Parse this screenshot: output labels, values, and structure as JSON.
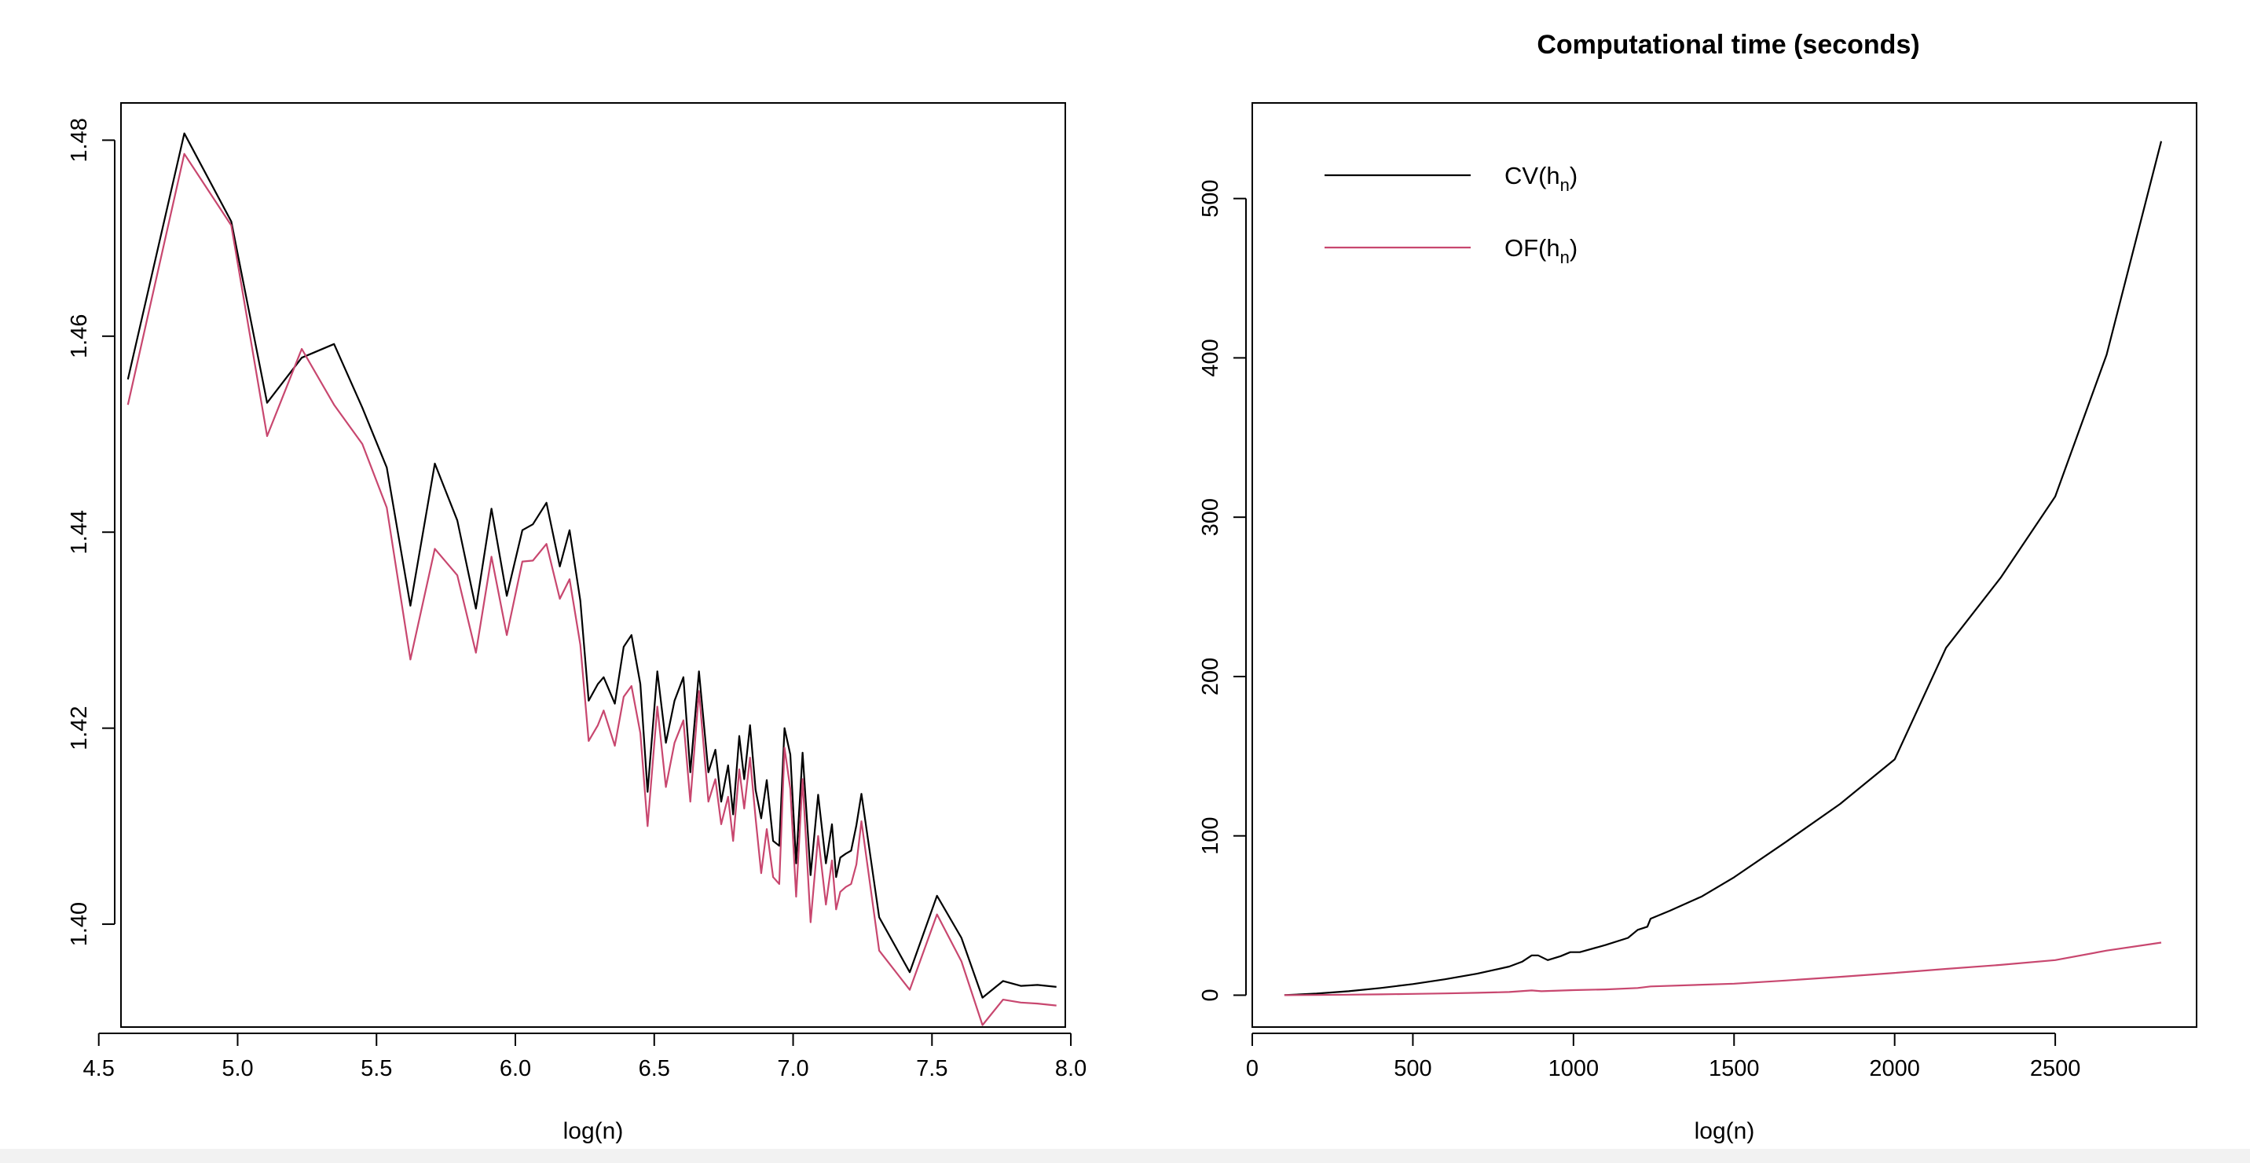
{
  "chart_data": [
    {
      "type": "line",
      "title": "",
      "xlabel": "log(n)",
      "ylabel": "",
      "xlim": [
        4.58,
        7.98
      ],
      "ylim": [
        1.3895,
        1.4838
      ],
      "x_ticks": [
        4.5,
        5.0,
        5.5,
        6.0,
        6.5,
        7.0,
        7.5,
        8.0
      ],
      "x_tick_labels": [
        "4.5",
        "5.0",
        "5.5",
        "6.0",
        "6.5",
        "7.0",
        "7.5",
        "8.0"
      ],
      "y_ticks": [
        1.4,
        1.42,
        1.44,
        1.46,
        1.48
      ],
      "y_tick_labels": [
        "1.40",
        "1.42",
        "1.44",
        "1.46",
        "1.48"
      ],
      "series": [
        {
          "color": "#000000",
          "x": [
            4.605,
            4.808,
            4.977,
            5.106,
            5.231,
            5.347,
            5.449,
            5.537,
            5.622,
            5.71,
            5.791,
            5.858,
            5.914,
            5.969,
            6.025,
            6.063,
            6.112,
            6.16,
            6.195,
            6.234,
            6.264,
            6.297,
            6.318,
            6.358,
            6.39,
            6.418,
            6.45,
            6.476,
            6.511,
            6.542,
            6.573,
            6.605,
            6.63,
            6.661,
            6.695,
            6.72,
            6.741,
            6.766,
            6.784,
            6.806,
            6.824,
            6.845,
            6.865,
            6.885,
            6.905,
            6.928,
            6.95,
            6.969,
            6.99,
            7.011,
            7.034,
            7.063,
            7.09,
            7.118,
            7.14,
            7.155,
            7.17,
            7.19,
            7.209,
            7.228,
            7.246,
            7.31,
            7.42,
            7.518,
            7.606,
            7.682,
            7.756,
            7.82,
            7.88,
            7.948
          ],
          "y": [
            1.4556,
            1.4807,
            1.4717,
            1.4532,
            1.4578,
            1.4592,
            1.4527,
            1.4466,
            1.4325,
            1.447,
            1.4412,
            1.4322,
            1.4424,
            1.4335,
            1.4402,
            1.4408,
            1.443,
            1.4365,
            1.4402,
            1.433,
            1.4228,
            1.4245,
            1.4252,
            1.4225,
            1.4283,
            1.4295,
            1.4245,
            1.4135,
            1.4258,
            1.4185,
            1.4228,
            1.4252,
            1.4155,
            1.4258,
            1.4155,
            1.4178,
            1.4125,
            1.4162,
            1.4112,
            1.4192,
            1.4148,
            1.4203,
            1.4137,
            1.4108,
            1.4147,
            1.4085,
            1.408,
            1.42,
            1.4173,
            1.4062,
            1.4175,
            1.405,
            1.4132,
            1.4062,
            1.4102,
            1.4048,
            1.4068,
            1.4072,
            1.4075,
            1.4101,
            1.4133,
            1.4007,
            1.3951,
            1.4029,
            1.3986,
            1.3925,
            1.3942,
            1.3937,
            1.3938,
            1.3936
          ],
          "y_fix_note": ""
        },
        {
          "color": "#c8476f",
          "x": [
            4.605,
            4.808,
            4.977,
            5.106,
            5.231,
            5.347,
            5.449,
            5.537,
            5.622,
            5.71,
            5.791,
            5.858,
            5.914,
            5.969,
            6.025,
            6.063,
            6.112,
            6.16,
            6.195,
            6.234,
            6.264,
            6.297,
            6.318,
            6.358,
            6.39,
            6.418,
            6.45,
            6.476,
            6.511,
            6.542,
            6.573,
            6.605,
            6.63,
            6.661,
            6.695,
            6.72,
            6.741,
            6.766,
            6.784,
            6.806,
            6.824,
            6.845,
            6.865,
            6.885,
            6.905,
            6.928,
            6.95,
            6.969,
            6.99,
            7.011,
            7.034,
            7.063,
            7.09,
            7.118,
            7.14,
            7.155,
            7.17,
            7.19,
            7.209,
            7.228,
            7.246,
            7.31,
            7.42,
            7.518,
            7.606,
            7.682,
            7.756,
            7.82,
            7.88,
            7.948
          ],
          "y": [
            1.453,
            1.4786,
            1.4713,
            1.4498,
            1.4587,
            1.453,
            1.449,
            1.4425,
            1.427,
            1.4383,
            1.4356,
            1.4277,
            1.4375,
            1.4295,
            1.437,
            1.4371,
            1.4388,
            1.4332,
            1.4352,
            1.4285,
            1.4187,
            1.4203,
            1.4218,
            1.4182,
            1.4232,
            1.4243,
            1.4195,
            1.41,
            1.4222,
            1.414,
            1.4185,
            1.4208,
            1.4125,
            1.4238,
            1.4125,
            1.4148,
            1.4102,
            1.413,
            1.4085,
            1.4158,
            1.4118,
            1.417,
            1.4108,
            1.4052,
            1.4097,
            1.4048,
            1.4041,
            1.418,
            1.4138,
            1.4028,
            1.4148,
            1.4002,
            1.409,
            1.402,
            1.4065,
            1.4015,
            1.4033,
            1.4038,
            1.4041,
            1.4061,
            1.4105,
            1.3973,
            1.3933,
            1.401,
            1.3962,
            1.3897,
            1.3923,
            1.392,
            1.3919,
            1.3917
          ]
        }
      ]
    },
    {
      "type": "line",
      "title": "Computational time (seconds)",
      "xlabel": "log(n)",
      "ylabel": "",
      "xlim": [
        0,
        2940
      ],
      "ylim": [
        -20,
        560
      ],
      "x_ticks": [
        0,
        500,
        1000,
        1500,
        2000,
        2500
      ],
      "x_tick_labels": [
        "0",
        "500",
        "1000",
        "1500",
        "2000",
        "2500"
      ],
      "y_ticks": [
        0,
        100,
        200,
        300,
        400,
        500
      ],
      "y_tick_labels": [
        "0",
        "100",
        "200",
        "300",
        "400",
        "500"
      ],
      "legend": {
        "position": "top-left",
        "entries": [
          {
            "label": "CV(h",
            "sub": "n",
            "close": ")",
            "color": "#000000"
          },
          {
            "label": "OF(h",
            "sub": "n",
            "close": ")",
            "color": "#c8476f"
          }
        ]
      },
      "series": [
        {
          "name": "CV(hn)",
          "color": "#000000",
          "x": [
            100,
            200,
            300,
            400,
            500,
            600,
            700,
            800,
            840,
            870,
            890,
            920,
            960,
            990,
            1020,
            1100,
            1170,
            1200,
            1230,
            1240,
            1300,
            1400,
            1500,
            1660,
            1830,
            2000,
            2160,
            2330,
            2500,
            2660,
            2830
          ],
          "y": [
            0,
            1,
            2.5,
            4.5,
            7,
            10,
            13.5,
            18,
            21,
            25,
            25,
            22,
            24.5,
            27,
            27,
            31.5,
            36,
            41,
            43,
            48,
            53,
            62,
            74,
            96,
            120,
            148,
            218,
            262,
            313,
            402,
            536
          ]
        },
        {
          "name": "OF(hn)",
          "color": "#c8476f",
          "x": [
            100,
            200,
            300,
            400,
            500,
            600,
            700,
            800,
            870,
            900,
            1000,
            1100,
            1200,
            1240,
            1500,
            1660,
            1830,
            2000,
            2160,
            2330,
            2500,
            2660,
            2830
          ],
          "y": [
            0,
            0.1,
            0.3,
            0.5,
            0.8,
            1.1,
            1.5,
            2,
            3,
            2.5,
            3.2,
            3.6,
            4.5,
            5.5,
            7.2,
            9.2,
            11.5,
            14,
            16.5,
            19,
            22,
            28,
            33
          ]
        }
      ]
    }
  ]
}
